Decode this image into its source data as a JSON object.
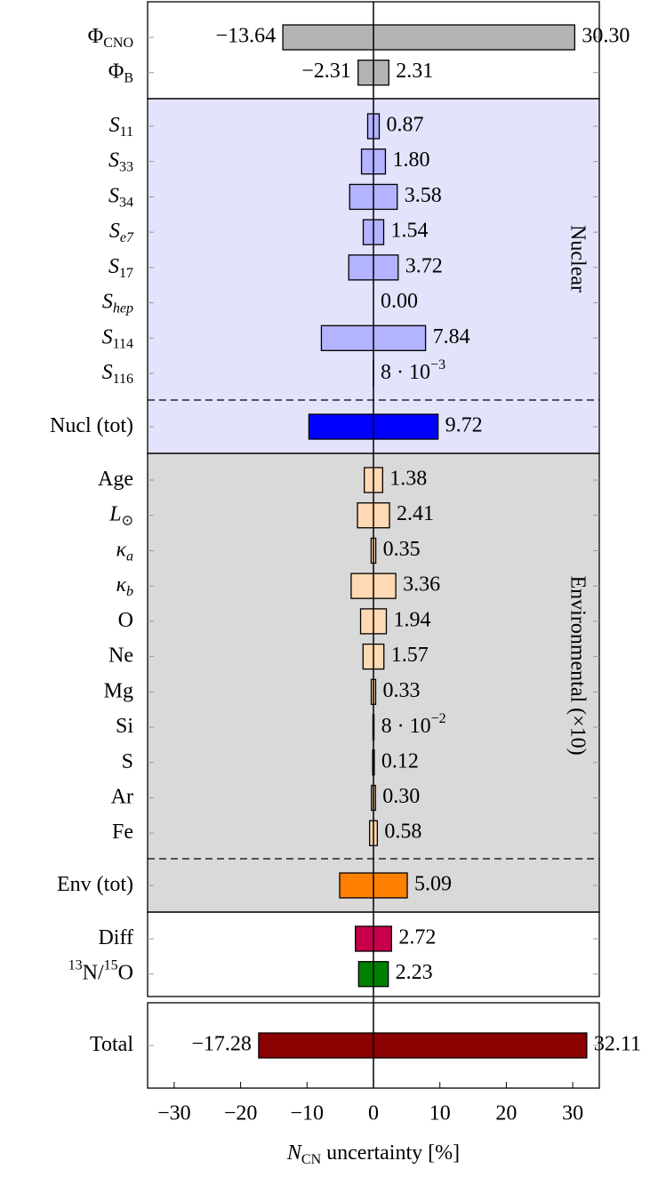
{
  "chart_data": {
    "type": "bar",
    "orientation": "horizontal",
    "xlim": [
      -34,
      34
    ],
    "xticks": [
      {
        "value": -30,
        "label": "−30"
      },
      {
        "value": -20,
        "label": "−20"
      },
      {
        "value": -10,
        "label": "−10"
      },
      0,
      10,
      20,
      30
    ],
    "xlabel": [
      {
        "t": "N",
        "italic": true
      },
      {
        "t": "CN",
        "sub": true
      },
      {
        "t": " uncertainty [%]"
      }
    ],
    "panels": [
      {
        "background": "#ffffff",
        "rows": [
          {
            "label": [
              {
                "t": "Φ"
              },
              {
                "t": "CNO",
                "sub": true
              }
            ],
            "color": "#b3b3b3",
            "low": -13.64,
            "high": 30.3,
            "low_label": "−13.64",
            "high_label": "30.30"
          },
          {
            "label": [
              {
                "t": "Φ"
              },
              {
                "t": "B",
                "sub": true
              }
            ],
            "color": "#b3b3b3",
            "low": -2.31,
            "high": 2.31,
            "low_label": "−2.31"
          }
        ]
      },
      {
        "name": "Nuclear",
        "background": "#e3e3fc",
        "rows": [
          {
            "label": [
              {
                "t": "S",
                "italic": true
              },
              {
                "t": "11",
                "sub": true
              }
            ],
            "color": "#b3b3ff",
            "value": 0.87
          },
          {
            "label": [
              {
                "t": "S",
                "italic": true
              },
              {
                "t": "33",
                "sub": true
              }
            ],
            "color": "#b3b3ff",
            "value": 1.8,
            "value_label": "1.80"
          },
          {
            "label": [
              {
                "t": "S",
                "italic": true
              },
              {
                "t": "34",
                "sub": true
              }
            ],
            "color": "#b3b3ff",
            "value": 3.58
          },
          {
            "label": [
              {
                "t": "S",
                "italic": true
              },
              {
                "t": "e7",
                "sub": true,
                "italic": true
              }
            ],
            "color": "#b3b3ff",
            "value": 1.54
          },
          {
            "label": [
              {
                "t": "S",
                "italic": true
              },
              {
                "t": "17",
                "sub": true
              }
            ],
            "color": "#b3b3ff",
            "value": 3.72
          },
          {
            "label": [
              {
                "t": "S",
                "italic": true
              },
              {
                "t": "hep",
                "sub": true,
                "italic": true
              }
            ],
            "color": "#b3b3ff",
            "value": 0,
            "value_label": "0.00"
          },
          {
            "label": [
              {
                "t": "S",
                "italic": true
              },
              {
                "t": "114",
                "sub": true
              }
            ],
            "color": "#b3b3ff",
            "value": 7.84
          },
          {
            "label": [
              {
                "t": "S",
                "italic": true
              },
              {
                "t": "116",
                "sub": true
              }
            ],
            "color": "#b3b3ff",
            "value": 0.008,
            "value_label": [
              {
                "t": "8 · 10"
              },
              {
                "t": "−3",
                "sup": true
              }
            ]
          }
        ],
        "total": {
          "label": [
            {
              "t": "Nucl (tot)"
            }
          ],
          "color": "#0000ff",
          "value": 9.72
        }
      },
      {
        "name": "Environmental (×10)",
        "background": "#d9d9d9",
        "rows": [
          {
            "label": [
              {
                "t": "Age"
              }
            ],
            "color": "#ffd9b3",
            "value": 1.38
          },
          {
            "label": [
              {
                "t": "L",
                "italic": true
              },
              {
                "t": "⊙",
                "sub": true
              }
            ],
            "color": "#ffd9b3",
            "value": 2.41
          },
          {
            "label": [
              {
                "t": "κ",
                "italic": true
              },
              {
                "t": "a",
                "sub": true,
                "italic": true
              }
            ],
            "color": "#ffd9b3",
            "value": 0.35
          },
          {
            "label": [
              {
                "t": "κ",
                "italic": true
              },
              {
                "t": "b",
                "sub": true,
                "italic": true
              }
            ],
            "color": "#ffd9b3",
            "value": 3.36
          },
          {
            "label": [
              {
                "t": "O"
              }
            ],
            "color": "#ffd9b3",
            "value": 1.94
          },
          {
            "label": [
              {
                "t": "Ne"
              }
            ],
            "color": "#ffd9b3",
            "value": 1.57
          },
          {
            "label": [
              {
                "t": "Mg"
              }
            ],
            "color": "#ffd9b3",
            "value": 0.33
          },
          {
            "label": [
              {
                "t": "Si"
              }
            ],
            "color": "#ffd9b3",
            "value": 0.08,
            "value_label": [
              {
                "t": "8 · 10"
              },
              {
                "t": "−2",
                "sup": true
              }
            ]
          },
          {
            "label": [
              {
                "t": "S"
              }
            ],
            "color": "#ffd9b3",
            "value": 0.12
          },
          {
            "label": [
              {
                "t": "Ar"
              }
            ],
            "color": "#ffd9b3",
            "value": 0.3,
            "value_label": "0.30"
          },
          {
            "label": [
              {
                "t": "Fe"
              }
            ],
            "color": "#ffd9b3",
            "value": 0.58
          }
        ],
        "total": {
          "label": [
            {
              "t": "Env (tot)"
            }
          ],
          "color": "#ff8000",
          "value": 5.09
        }
      },
      {
        "background": "#ffffff",
        "rows": [
          {
            "label": [
              {
                "t": "Diff"
              }
            ],
            "color": "#c8004b",
            "value": 2.72
          },
          {
            "label": [
              {
                "t": "13",
                "sup": true
              },
              {
                "t": "N/"
              },
              {
                "t": "15",
                "sup": true
              },
              {
                "t": "O"
              }
            ],
            "color": "#008000",
            "value": 2.23
          }
        ]
      },
      {
        "background": "#ffffff",
        "rows": [
          {
            "label": [
              {
                "t": "Total"
              }
            ],
            "color": "#8b0000",
            "low": -17.28,
            "high": 32.11,
            "low_label": "−17.28"
          }
        ]
      }
    ]
  }
}
